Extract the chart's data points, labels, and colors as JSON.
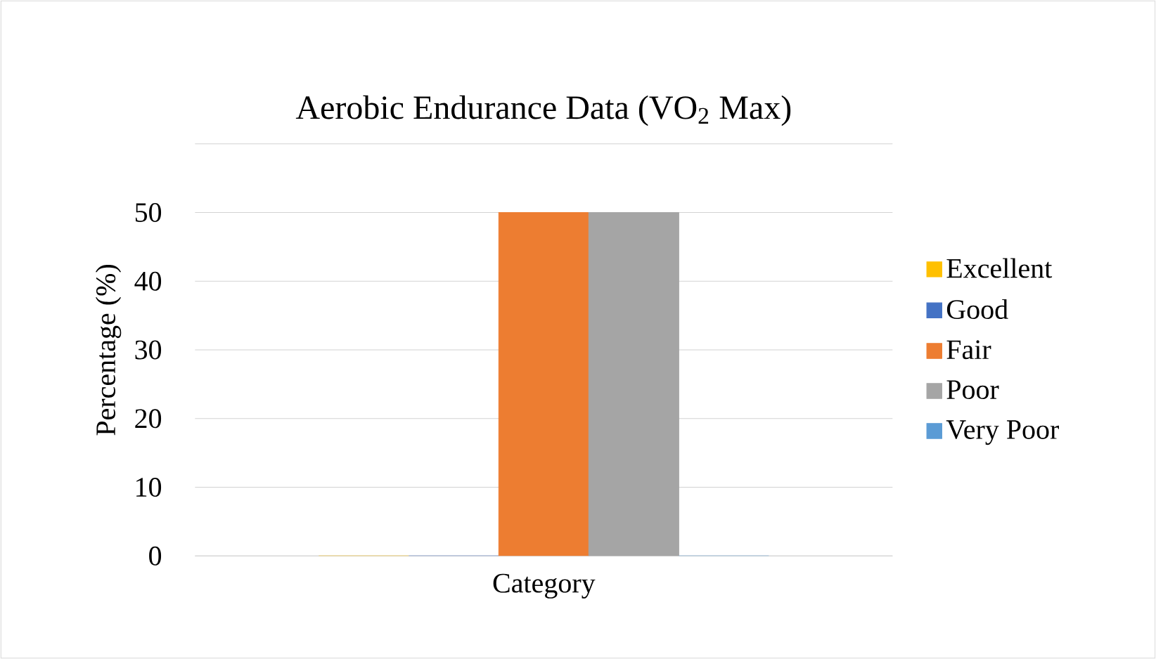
{
  "chart_data": {
    "type": "bar",
    "title": "Aerobic Endurance Data (VO$_{2}$ Max)",
    "ylabel": "Percentage (%)",
    "categories": [
      "Category"
    ],
    "series": [
      {
        "name": "Excellent",
        "color": "#ffc000",
        "values": [
          0
        ]
      },
      {
        "name": "Good",
        "color": "#4472c4",
        "values": [
          0
        ]
      },
      {
        "name": "Fair",
        "color": "#ed7d31",
        "values": [
          50
        ]
      },
      {
        "name": "Poor",
        "color": "#a5a5a5",
        "values": [
          50
        ]
      },
      {
        "name": "Very Poor",
        "color": "#5b9bd5",
        "values": [
          0
        ]
      }
    ],
    "ylim": [
      0,
      60
    ],
    "yticks": [
      0,
      10,
      20,
      30,
      40,
      50,
      {
        "value": 60,
        "label": null
      }
    ],
    "grid": "y",
    "legend": "right"
  }
}
